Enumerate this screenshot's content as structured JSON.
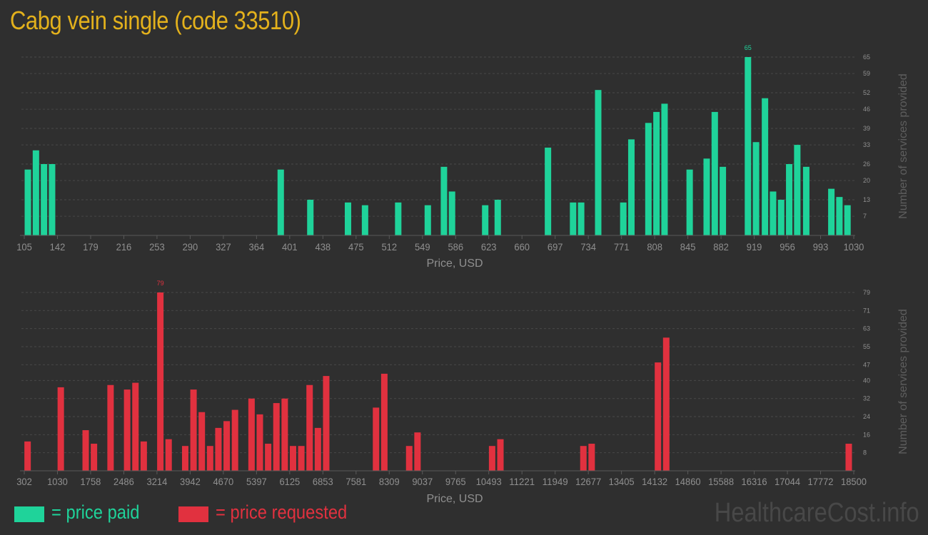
{
  "title": "Cabg vein single (code 33510)",
  "colors": {
    "background": "#2f2f2f",
    "title": "#e3b11c",
    "paid": "#1fd39a",
    "requested": "#e1313f",
    "axis_text": "#8f8f8f",
    "grid": "#484848",
    "watermark": "#484848"
  },
  "legend": {
    "paid_label": "= price paid",
    "requested_label": "= price requested"
  },
  "watermark": "HealthcareCost.info",
  "chart_data": [
    {
      "type": "bar",
      "name": "paid",
      "xlabel": "Price, USD",
      "ylabel": "Number of services provided",
      "x_ticks": [
        "105",
        "142",
        "179",
        "216",
        "253",
        "290",
        "327",
        "364",
        "401",
        "438",
        "475",
        "512",
        "549",
        "586",
        "623",
        "660",
        "697",
        "734",
        "771",
        "808",
        "845",
        "882",
        "919",
        "956",
        "993",
        "1030"
      ],
      "y_ticks": [
        "7",
        "13",
        "20",
        "26",
        "33",
        "39",
        "46",
        "52",
        "59",
        "65"
      ],
      "ylim": [
        0,
        65
      ],
      "xlim": [
        105,
        1030
      ],
      "grid": true,
      "max_label": "65",
      "bars": [
        {
          "x": 109,
          "y": 24
        },
        {
          "x": 118,
          "y": 31
        },
        {
          "x": 127,
          "y": 26
        },
        {
          "x": 136,
          "y": 26
        },
        {
          "x": 391,
          "y": 24
        },
        {
          "x": 424,
          "y": 13
        },
        {
          "x": 466,
          "y": 12
        },
        {
          "x": 485,
          "y": 11
        },
        {
          "x": 522,
          "y": 12
        },
        {
          "x": 555,
          "y": 11
        },
        {
          "x": 573,
          "y": 25
        },
        {
          "x": 582,
          "y": 16
        },
        {
          "x": 619,
          "y": 11
        },
        {
          "x": 633,
          "y": 13
        },
        {
          "x": 689,
          "y": 32
        },
        {
          "x": 717,
          "y": 12
        },
        {
          "x": 726,
          "y": 12
        },
        {
          "x": 745,
          "y": 53
        },
        {
          "x": 773,
          "y": 12
        },
        {
          "x": 782,
          "y": 35
        },
        {
          "x": 801,
          "y": 41
        },
        {
          "x": 810,
          "y": 45
        },
        {
          "x": 819,
          "y": 48
        },
        {
          "x": 847,
          "y": 24
        },
        {
          "x": 866,
          "y": 28
        },
        {
          "x": 875,
          "y": 45
        },
        {
          "x": 884,
          "y": 25
        },
        {
          "x": 912,
          "y": 65
        },
        {
          "x": 921,
          "y": 34
        },
        {
          "x": 931,
          "y": 50
        },
        {
          "x": 940,
          "y": 16
        },
        {
          "x": 949,
          "y": 13
        },
        {
          "x": 958,
          "y": 26
        },
        {
          "x": 967,
          "y": 33
        },
        {
          "x": 977,
          "y": 25
        },
        {
          "x": 1005,
          "y": 17
        },
        {
          "x": 1014,
          "y": 14
        },
        {
          "x": 1023,
          "y": 11
        }
      ]
    },
    {
      "type": "bar",
      "name": "requested",
      "xlabel": "Price, USD",
      "ylabel": "Number of services provided",
      "x_ticks": [
        "302",
        "1030",
        "1758",
        "2486",
        "3214",
        "3942",
        "4670",
        "5397",
        "6125",
        "6853",
        "7581",
        "8309",
        "9037",
        "9765",
        "10493",
        "11221",
        "11949",
        "12677",
        "13405",
        "14132",
        "14860",
        "15588",
        "16316",
        "17044",
        "17772",
        "18500"
      ],
      "y_ticks": [
        "8",
        "16",
        "24",
        "32",
        "40",
        "47",
        "55",
        "63",
        "71",
        "79"
      ],
      "ylim": [
        0,
        79
      ],
      "xlim": [
        302,
        18500
      ],
      "grid": true,
      "max_label": "79",
      "bars": [
        {
          "x": 375,
          "y": 13
        },
        {
          "x": 1103,
          "y": 37
        },
        {
          "x": 1649,
          "y": 18
        },
        {
          "x": 1831,
          "y": 12
        },
        {
          "x": 2195,
          "y": 38
        },
        {
          "x": 2559,
          "y": 36
        },
        {
          "x": 2741,
          "y": 39
        },
        {
          "x": 2923,
          "y": 13
        },
        {
          "x": 3287,
          "y": 79
        },
        {
          "x": 3469,
          "y": 14
        },
        {
          "x": 3833,
          "y": 11
        },
        {
          "x": 4015,
          "y": 36
        },
        {
          "x": 4197,
          "y": 26
        },
        {
          "x": 4379,
          "y": 11
        },
        {
          "x": 4561,
          "y": 19
        },
        {
          "x": 4743,
          "y": 22
        },
        {
          "x": 4925,
          "y": 27
        },
        {
          "x": 5288,
          "y": 32
        },
        {
          "x": 5470,
          "y": 25
        },
        {
          "x": 5652,
          "y": 12
        },
        {
          "x": 5834,
          "y": 30
        },
        {
          "x": 6016,
          "y": 32
        },
        {
          "x": 6198,
          "y": 11
        },
        {
          "x": 6380,
          "y": 11
        },
        {
          "x": 6562,
          "y": 38
        },
        {
          "x": 6744,
          "y": 19
        },
        {
          "x": 6926,
          "y": 42
        },
        {
          "x": 8019,
          "y": 28
        },
        {
          "x": 8201,
          "y": 43
        },
        {
          "x": 8747,
          "y": 11
        },
        {
          "x": 8929,
          "y": 17
        },
        {
          "x": 10566,
          "y": 11
        },
        {
          "x": 10748,
          "y": 14
        },
        {
          "x": 12568,
          "y": 11
        },
        {
          "x": 12750,
          "y": 12
        },
        {
          "x": 14204,
          "y": 48
        },
        {
          "x": 14386,
          "y": 59
        },
        {
          "x": 18390,
          "y": 12
        }
      ]
    }
  ]
}
